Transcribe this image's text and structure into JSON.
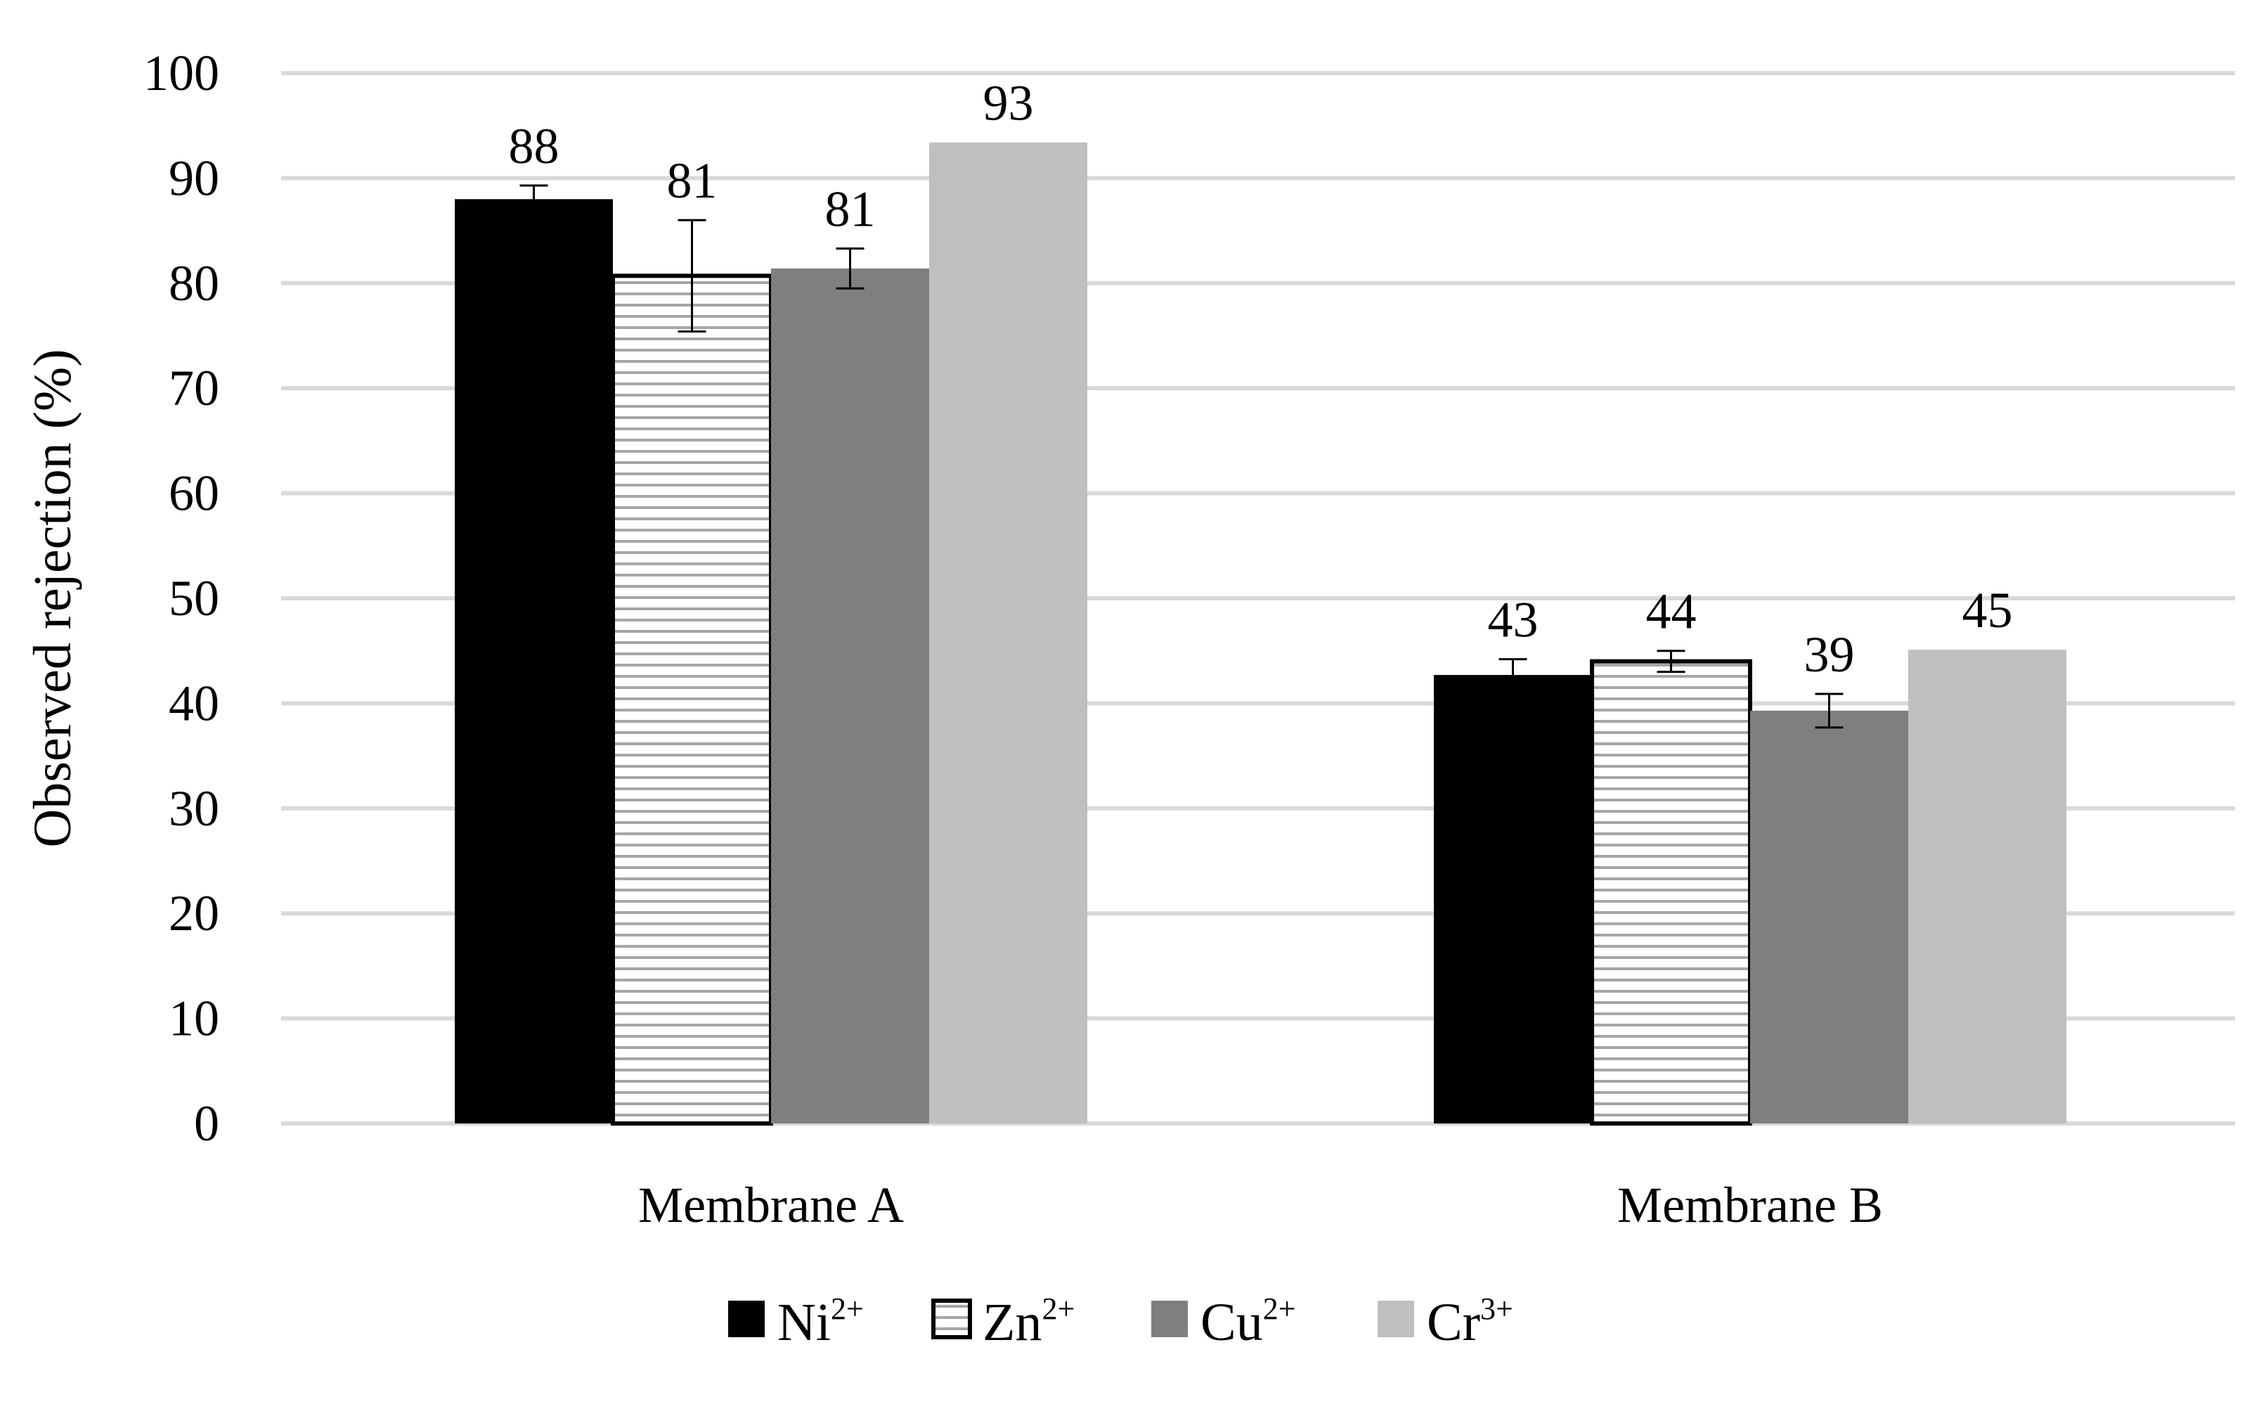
{
  "chart_data": {
    "type": "bar",
    "title": "",
    "xlabel": "",
    "ylabel": "Observed rejection (%)",
    "ylim": [
      0,
      100
    ],
    "yticks": [
      0,
      10,
      20,
      30,
      40,
      50,
      60,
      70,
      80,
      90,
      100
    ],
    "grid": true,
    "legend_position": "bottom",
    "categories": [
      "Membrane A",
      "Membrane B"
    ],
    "series": [
      {
        "name": "Ni",
        "superscript": "2+",
        "values": [
          88,
          42.7
        ],
        "errors": [
          1.3,
          1.5
        ],
        "labels": [
          "88",
          "43"
        ],
        "color": "#000000",
        "pattern": "solid"
      },
      {
        "name": "Zn",
        "superscript": "2+",
        "values": [
          80.7,
          44
        ],
        "errors": [
          5.3,
          1.0
        ],
        "labels": [
          "81",
          "44"
        ],
        "color": "#ffffff",
        "pattern": "horizontal-stripes"
      },
      {
        "name": "Cu",
        "superscript": "2+",
        "values": [
          81.4,
          39.3
        ],
        "errors": [
          1.9,
          1.6
        ],
        "labels": [
          "81",
          "39"
        ],
        "color": "#7f7f7f",
        "pattern": "solid"
      },
      {
        "name": "Cr",
        "superscript": "3+",
        "values": [
          93.4,
          45.1
        ],
        "errors": [
          null,
          null
        ],
        "labels": [
          "93",
          "45"
        ],
        "color": "#bfbfbf",
        "pattern": "solid"
      }
    ]
  },
  "colors": {
    "gridline": "#d9d9d9",
    "stripe": "#a6a6a6"
  }
}
